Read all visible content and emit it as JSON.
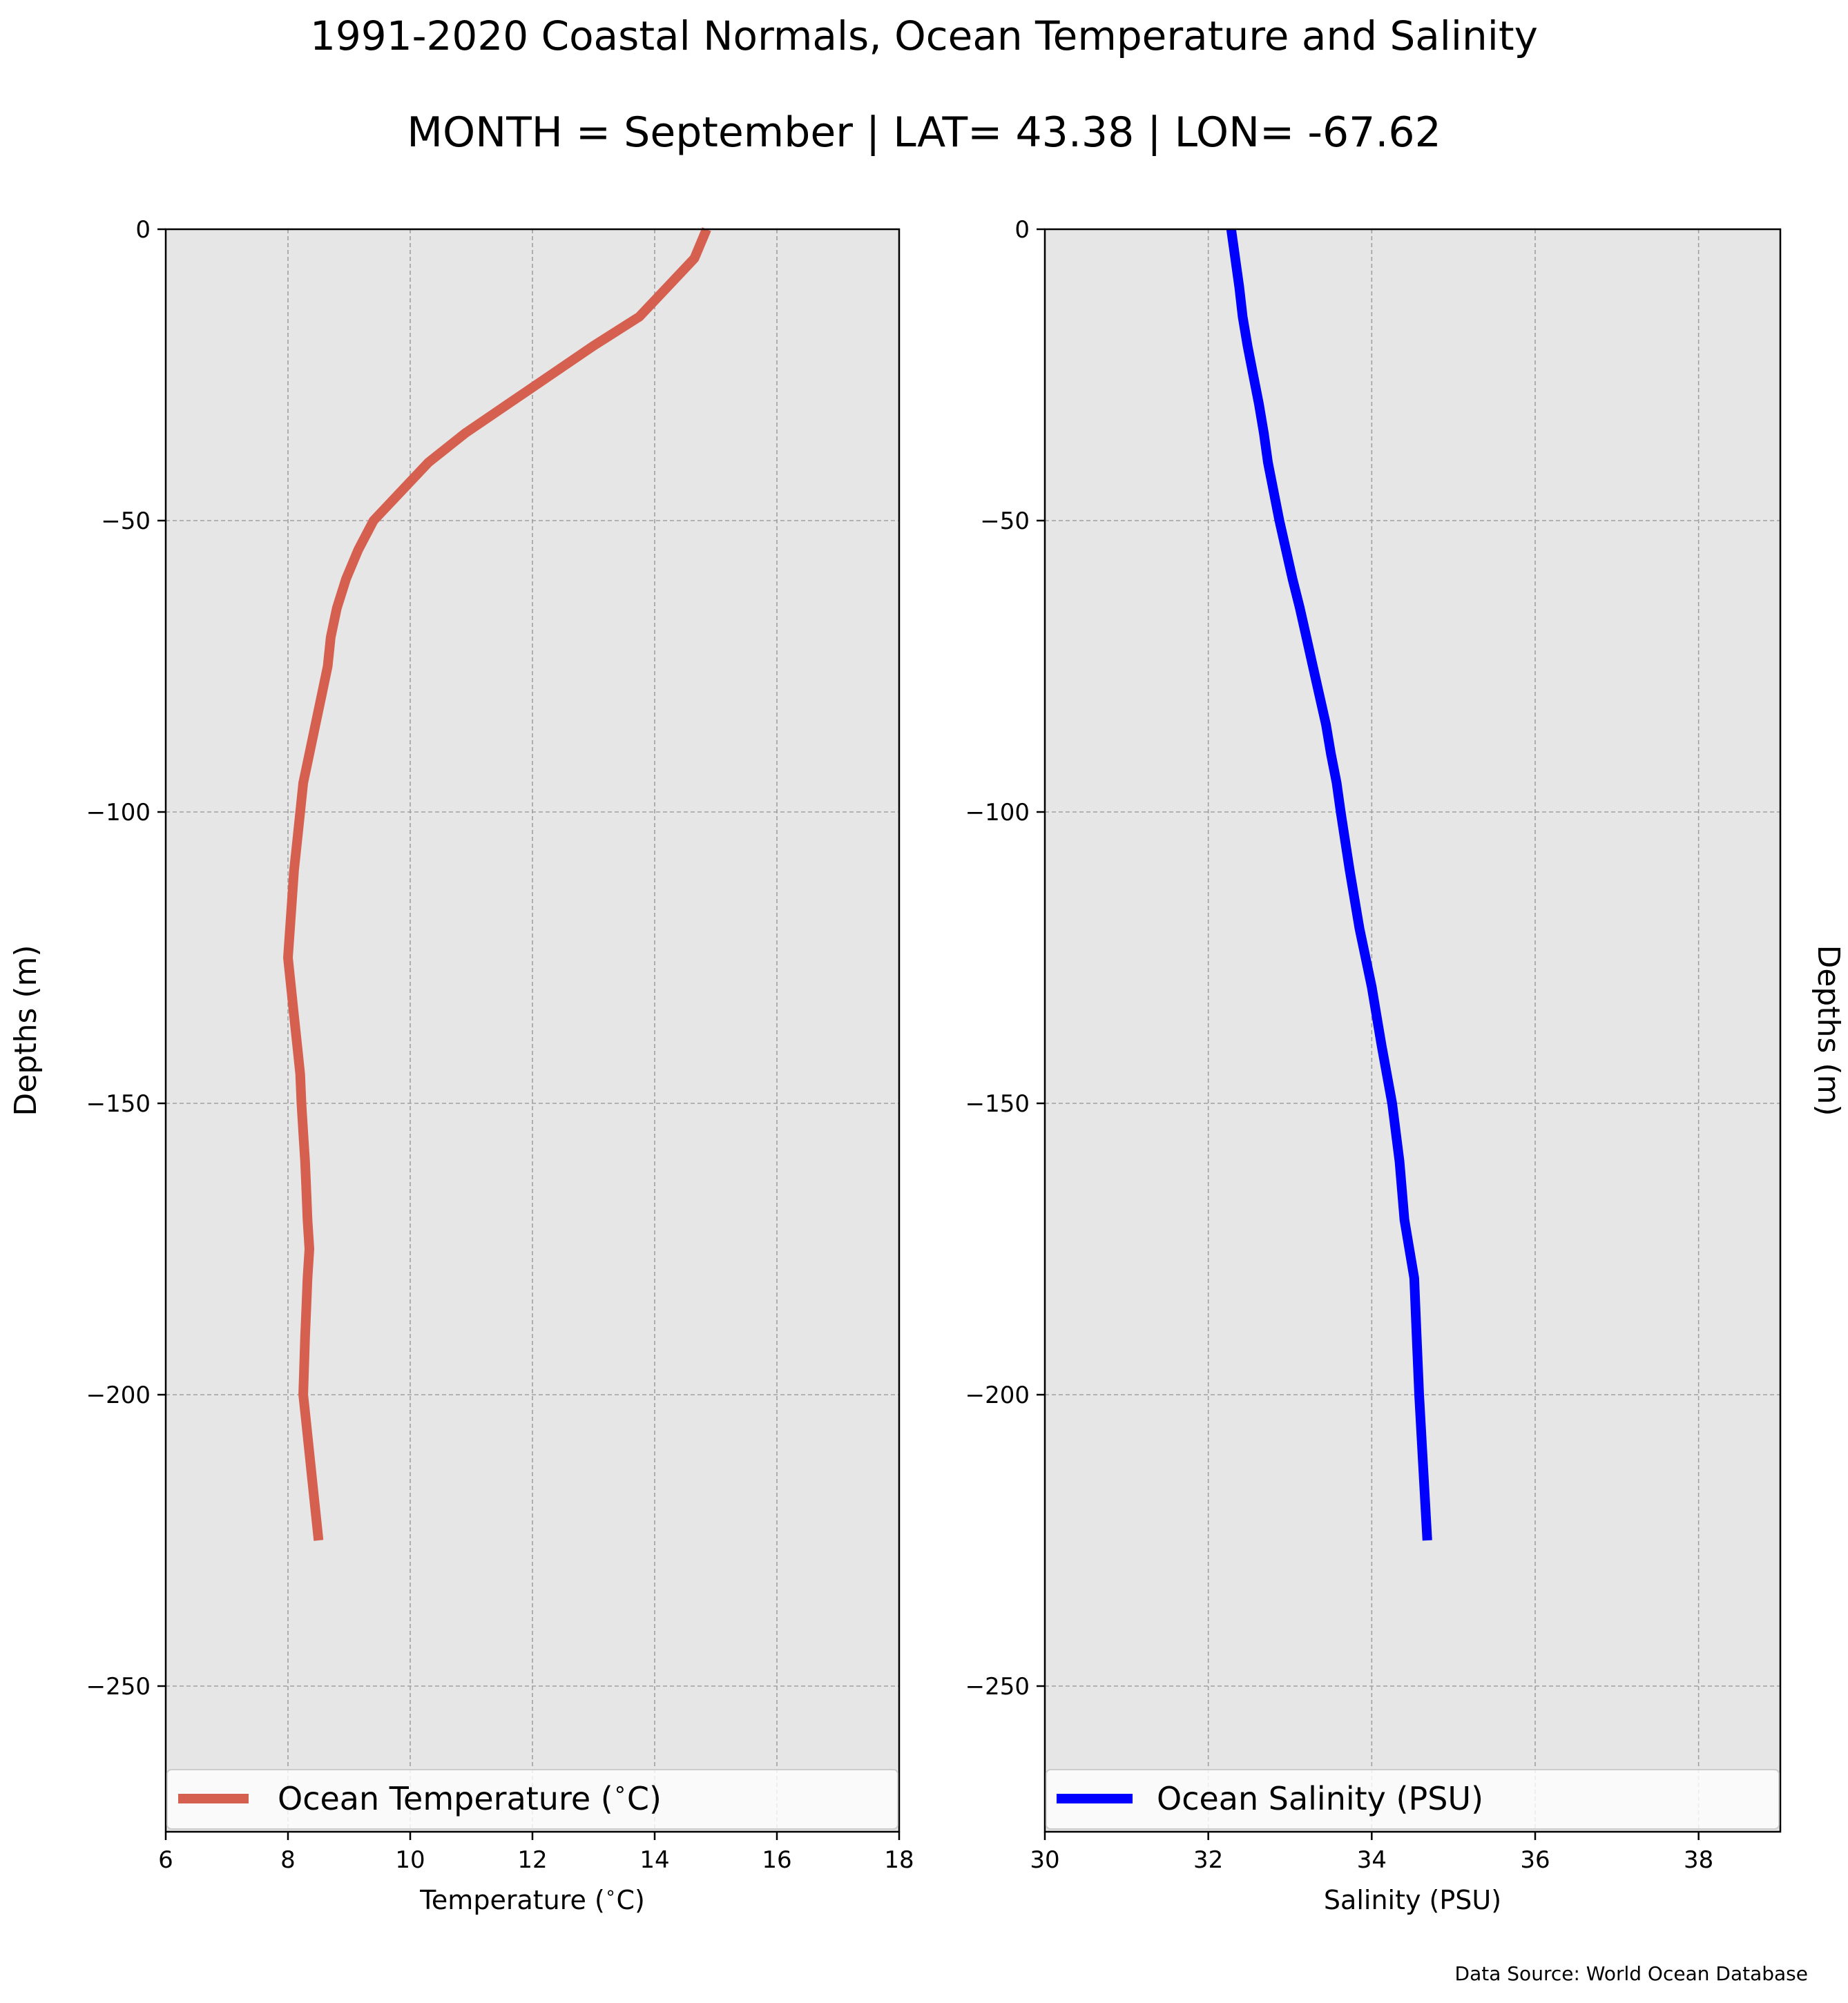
{
  "figure": {
    "title_line1": "1991-2020 Coastal Normals, Ocean Temperature and Salinity",
    "title_line2": "MONTH = September | LAT= 43.38 | LON= -67.62",
    "source": "Data Source: World Ocean Database"
  },
  "colors": {
    "panel_background": "#e6e6e6",
    "grid": "#a0a0a0",
    "temperature_line": "#d66050",
    "salinity_line": "#0000ff"
  },
  "chart_data": [
    {
      "type": "line",
      "orientation": "profile (x = value, y = depth)",
      "xlabel": "Temperature ($^\\circ$C)",
      "ylabel": "Depths (m)",
      "xlim": [
        6,
        18
      ],
      "ylim": [
        -275,
        0
      ],
      "xticks": [
        6,
        8,
        10,
        12,
        14,
        16,
        18
      ],
      "xtick_labels": [
        "6",
        "8",
        "10",
        "12",
        "14",
        "16",
        "18"
      ],
      "yticks": [
        0,
        -50,
        -100,
        -150,
        -200,
        -250
      ],
      "ytick_labels": [
        "0",
        "−50",
        "−100",
        "−150",
        "−200",
        "−250"
      ],
      "grid": true,
      "legend_position": "lower center",
      "series": [
        {
          "name": "Ocean Temperature ($^\\circ$C)",
          "color": "#d66050",
          "x": [
            14.85,
            14.65,
            14.2,
            13.75,
            13.0,
            12.3,
            11.6,
            10.9,
            10.3,
            9.85,
            9.4,
            9.15,
            8.95,
            8.8,
            8.7,
            8.65,
            8.55,
            8.45,
            8.35,
            8.25,
            8.2,
            8.15,
            8.1,
            8.0,
            8.05,
            8.1,
            8.15,
            8.2,
            8.22,
            8.25,
            8.28,
            8.3,
            8.32,
            8.35,
            8.32,
            8.3,
            8.28,
            8.25,
            8.3,
            8.4,
            8.5
          ],
          "y": [
            0,
            -5,
            -10,
            -15,
            -20,
            -25,
            -30,
            -35,
            -40,
            -45,
            -50,
            -55,
            -60,
            -65,
            -70,
            -75,
            -80,
            -85,
            -90,
            -95,
            -100,
            -105,
            -110,
            -125,
            -130,
            -135,
            -140,
            -145,
            -150,
            -155,
            -160,
            -165,
            -170,
            -175,
            -180,
            -185,
            -190,
            -200,
            -205,
            -215,
            -225
          ]
        }
      ]
    },
    {
      "type": "line",
      "orientation": "profile (x = value, y = depth)",
      "xlabel": "Salinity (PSU)",
      "ylabel": "Depths (m)",
      "xlim": [
        30,
        39
      ],
      "ylim": [
        -275,
        0
      ],
      "xticks": [
        30,
        32,
        34,
        36,
        38
      ],
      "xtick_labels": [
        "30",
        "32",
        "34",
        "36",
        "38"
      ],
      "yticks": [
        0,
        -50,
        -100,
        -150,
        -200,
        -250
      ],
      "ytick_labels": [
        "0",
        "−50",
        "−100",
        "−150",
        "−200",
        "−250"
      ],
      "grid": true,
      "legend_position": "lower center",
      "series": [
        {
          "name": "Ocean Salinity (PSU)",
          "color": "#0000ff",
          "x": [
            32.28,
            32.33,
            32.38,
            32.42,
            32.48,
            32.55,
            32.62,
            32.68,
            32.73,
            32.8,
            32.87,
            32.95,
            33.03,
            33.12,
            33.2,
            33.28,
            33.36,
            33.44,
            33.5,
            33.57,
            33.62,
            33.73,
            33.85,
            34.0,
            34.12,
            34.25,
            34.34,
            34.4,
            34.46,
            34.52,
            34.55,
            34.58,
            34.62,
            34.68
          ],
          "y": [
            0,
            -5,
            -10,
            -15,
            -20,
            -25,
            -30,
            -35,
            -40,
            -45,
            -50,
            -55,
            -60,
            -65,
            -70,
            -75,
            -80,
            -85,
            -90,
            -95,
            -100,
            -110,
            -120,
            -130,
            -140,
            -150,
            -160,
            -170,
            -175,
            -180,
            -190,
            -200,
            -210,
            -225
          ]
        }
      ]
    }
  ]
}
